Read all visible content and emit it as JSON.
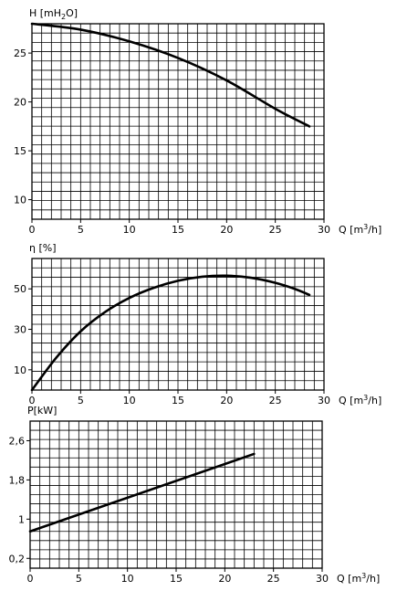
{
  "chart_data": [
    {
      "type": "line",
      "ylabel": "H [mH2O]",
      "ylabel_parts": {
        "pre": "H [mH",
        "sub": "2",
        "post": "O]"
      },
      "xlabel": "Q [m3/h]",
      "xlabel_parts": {
        "pre": "Q [m",
        "sup": "3",
        "post": "/h]"
      },
      "xlim": [
        0,
        30
      ],
      "ylim": [
        8,
        28
      ],
      "xticks": [
        0,
        5,
        10,
        15,
        20,
        25,
        30
      ],
      "xtick_labels": [
        "0",
        "5",
        "10",
        "15",
        "20",
        "25",
        "30"
      ],
      "yticks": [
        10,
        15,
        20,
        25
      ],
      "ytick_labels": [
        "10",
        "15",
        "20",
        "25"
      ],
      "grid": true,
      "series": [
        {
          "values": [
            [
              0,
              28.0
            ],
            [
              5,
              27.4
            ],
            [
              10,
              26.2
            ],
            [
              15,
              24.5
            ],
            [
              20,
              22.2
            ],
            [
              25,
              19.3
            ],
            [
              28.5,
              17.5
            ]
          ]
        }
      ]
    },
    {
      "type": "line",
      "ylabel": "η [%]",
      "xlabel": "Q [m3/h]",
      "xlabel_parts": {
        "pre": "Q [m",
        "sup": "3",
        "post": "/h]"
      },
      "xlim": [
        0,
        30
      ],
      "ylim": [
        0,
        65
      ],
      "xticks": [
        0,
        5,
        10,
        15,
        20,
        25,
        30
      ],
      "xtick_labels": [
        "0",
        "5",
        "10",
        "15",
        "20",
        "25",
        "30"
      ],
      "yticks": [
        10,
        30,
        50
      ],
      "ytick_labels": [
        "10",
        "30",
        "50"
      ],
      "grid": true,
      "series": [
        {
          "values": [
            [
              0,
              0
            ],
            [
              2.5,
              16
            ],
            [
              5,
              29
            ],
            [
              7.5,
              38.5
            ],
            [
              10,
              45.5
            ],
            [
              12.5,
              50.5
            ],
            [
              15,
              54
            ],
            [
              17.5,
              56
            ],
            [
              20,
              56.5
            ],
            [
              22.5,
              55.5
            ],
            [
              25,
              53
            ],
            [
              27,
              50
            ],
            [
              28.5,
              47
            ]
          ]
        }
      ]
    },
    {
      "type": "line",
      "ylabel": "P[kW]",
      "xlabel": "Q [m3/h]",
      "xlabel_parts": {
        "pre": "Q [m",
        "sup": "3",
        "post": "/h]"
      },
      "xlim": [
        0,
        30
      ],
      "ylim": [
        0,
        3
      ],
      "xticks": [
        0,
        5,
        10,
        15,
        20,
        25,
        30
      ],
      "xtick_labels": [
        "0",
        "5",
        "10",
        "15",
        "20",
        "25",
        "30"
      ],
      "yticks": [
        0.2,
        1.0,
        1.8,
        2.6
      ],
      "ytick_labels": [
        "0,2",
        "1",
        "1,8",
        "2,6"
      ],
      "grid": true,
      "series": [
        {
          "values": [
            [
              0,
              0.75
            ],
            [
              23,
              2.33
            ]
          ]
        }
      ]
    }
  ]
}
